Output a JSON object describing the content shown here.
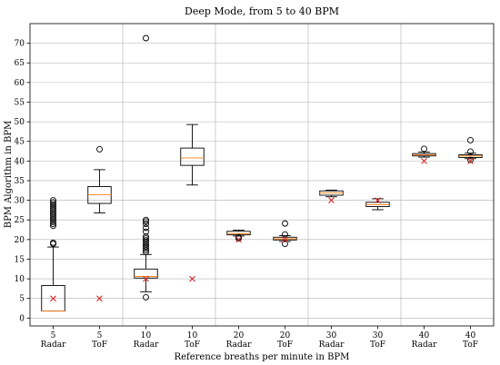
{
  "chart_data": {
    "type": "box",
    "title": "Deep Mode, from 5 to 40 BPM",
    "xlabel": "Reference breaths per minute in BPM",
    "ylabel": "BPM Algorithm in BPM",
    "ylim": [
      -2,
      75
    ],
    "yticks": [
      0,
      5,
      10,
      15,
      20,
      25,
      30,
      35,
      40,
      45,
      50,
      55,
      60,
      65,
      70
    ],
    "grid": true,
    "colors": {
      "box": "#000000",
      "median": "#ff7f0e",
      "reference_marker": "#d62728",
      "grid": "#b0b0b0"
    },
    "groups": [
      {
        "ref": "5",
        "sensor": "Radar",
        "whisker_low": 1.8,
        "q1": 1.8,
        "median": 1.8,
        "q3": 8.3,
        "whisker_high": 18.1,
        "reference": 5,
        "outliers": [
          18.9,
          19.2,
          23.5,
          24.0,
          24.5,
          25.0,
          25.5,
          26.0,
          26.5,
          27.0,
          27.5,
          28.0,
          28.5,
          29.0,
          29.5,
          30.0
        ]
      },
      {
        "ref": "5",
        "sensor": "ToF",
        "whisker_low": 26.8,
        "q1": 29.2,
        "median": 31.4,
        "q3": 33.5,
        "whisker_high": 37.8,
        "reference": 5,
        "outliers": [
          43.0
        ]
      },
      {
        "ref": "10",
        "sensor": "Radar",
        "whisker_low": 6.7,
        "q1": 10.2,
        "median": 10.6,
        "q3": 12.5,
        "whisker_high": 16.2,
        "reference": 10,
        "outliers": [
          5.3,
          16.8,
          17.3,
          17.8,
          18.3,
          18.8,
          19.3,
          19.8,
          20.3,
          20.8,
          22.0,
          23.0,
          24.0,
          24.6,
          25.0,
          71.3
        ]
      },
      {
        "ref": "10",
        "sensor": "ToF",
        "whisker_low": 33.9,
        "q1": 38.9,
        "median": 40.8,
        "q3": 43.3,
        "whisker_high": 49.3,
        "reference": 10,
        "outliers": []
      },
      {
        "ref": "20",
        "sensor": "Radar",
        "whisker_low": 20.9,
        "q1": 21.2,
        "median": 21.5,
        "q3": 22.1,
        "whisker_high": 22.4,
        "reference": 20,
        "outliers": [
          20.3,
          20.6
        ]
      },
      {
        "ref": "20",
        "sensor": "ToF",
        "whisker_low": 19.5,
        "q1": 19.9,
        "median": 20.2,
        "q3": 20.6,
        "whisker_high": 21.0,
        "reference": 20,
        "outliers": [
          18.9,
          21.3,
          24.1
        ]
      },
      {
        "ref": "30",
        "sensor": "Radar",
        "whisker_low": 30.9,
        "q1": 31.3,
        "median": 31.9,
        "q3": 32.4,
        "whisker_high": 32.6,
        "reference": 30,
        "outliers": []
      },
      {
        "ref": "30",
        "sensor": "ToF",
        "whisker_low": 27.6,
        "q1": 28.4,
        "median": 28.9,
        "q3": 29.5,
        "whisker_high": 30.4,
        "reference": 30,
        "outliers": []
      },
      {
        "ref": "40",
        "sensor": "Radar",
        "whisker_low": 41.0,
        "q1": 41.3,
        "median": 41.6,
        "q3": 41.9,
        "whisker_high": 42.3,
        "reference": 40,
        "outliers": [
          43.1
        ]
      },
      {
        "ref": "40",
        "sensor": "ToF",
        "whisker_low": 40.6,
        "q1": 40.9,
        "median": 41.3,
        "q3": 41.6,
        "whisker_high": 42.0,
        "reference": 40,
        "outliers": [
          40.3,
          42.4,
          45.3
        ]
      }
    ]
  }
}
